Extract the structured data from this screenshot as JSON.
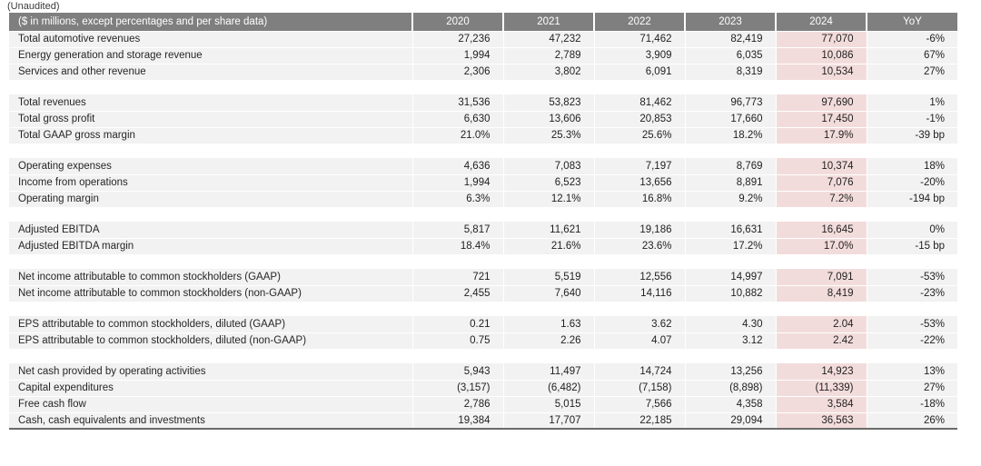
{
  "page": {
    "unaudited_label": "(Unaudited)"
  },
  "colors": {
    "header_bg": "#7f7f7f",
    "header_text": "#ffffff",
    "row_bg": "#f2f2f2",
    "highlight_2024": "#f2dcdb",
    "text": "#1f1f1f",
    "bottom_border": "#6a6a6a"
  },
  "table": {
    "header": {
      "label": "($ in millions, except percentages and per share data)",
      "columns": [
        "2020",
        "2021",
        "2022",
        "2023",
        "2024",
        "YoY"
      ]
    },
    "sections": [
      {
        "rows": [
          {
            "label": "Total automotive revenues",
            "values": [
              "27,236",
              "47,232",
              "71,462",
              "82,419",
              "77,070",
              "-6%"
            ]
          },
          {
            "label": "Energy generation and storage revenue",
            "values": [
              "1,994",
              "2,789",
              "3,909",
              "6,035",
              "10,086",
              "67%"
            ]
          },
          {
            "label": "Services and other revenue",
            "values": [
              "2,306",
              "3,802",
              "6,091",
              "8,319",
              "10,534",
              "27%"
            ]
          }
        ]
      },
      {
        "rows": [
          {
            "label": "Total revenues",
            "values": [
              "31,536",
              "53,823",
              "81,462",
              "96,773",
              "97,690",
              "1%"
            ]
          },
          {
            "label": "Total gross profit",
            "values": [
              "6,630",
              "13,606",
              "20,853",
              "17,660",
              "17,450",
              "-1%"
            ]
          },
          {
            "label": "Total GAAP gross margin",
            "values": [
              "21.0%",
              "25.3%",
              "25.6%",
              "18.2%",
              "17.9%",
              "-39 bp"
            ]
          }
        ]
      },
      {
        "rows": [
          {
            "label": "Operating expenses",
            "values": [
              "4,636",
              "7,083",
              "7,197",
              "8,769",
              "10,374",
              "18%"
            ]
          },
          {
            "label": "Income from operations",
            "values": [
              "1,994",
              "6,523",
              "13,656",
              "8,891",
              "7,076",
              "-20%"
            ]
          },
          {
            "label": "Operating margin",
            "values": [
              "6.3%",
              "12.1%",
              "16.8%",
              "9.2%",
              "7.2%",
              "-194 bp"
            ]
          }
        ]
      },
      {
        "rows": [
          {
            "label": "Adjusted EBITDA",
            "values": [
              "5,817",
              "11,621",
              "19,186",
              "16,631",
              "16,645",
              "0%"
            ]
          },
          {
            "label": "Adjusted EBITDA margin",
            "values": [
              "18.4%",
              "21.6%",
              "23.6%",
              "17.2%",
              "17.0%",
              "-15 bp"
            ]
          }
        ]
      },
      {
        "rows": [
          {
            "label": "Net income attributable to common stockholders (GAAP)",
            "values": [
              "721",
              "5,519",
              "12,556",
              "14,997",
              "7,091",
              "-53%"
            ]
          },
          {
            "label": "Net income attributable to common stockholders (non-GAAP)",
            "values": [
              "2,455",
              "7,640",
              "14,116",
              "10,882",
              "8,419",
              "-23%"
            ]
          }
        ]
      },
      {
        "rows": [
          {
            "label": "EPS attributable to common stockholders, diluted (GAAP)",
            "values": [
              "0.21",
              "1.63",
              "3.62",
              "4.30",
              "2.04",
              "-53%"
            ]
          },
          {
            "label": "EPS attributable to common stockholders, diluted (non-GAAP)",
            "values": [
              "0.75",
              "2.26",
              "4.07",
              "3.12",
              "2.42",
              "-22%"
            ]
          }
        ]
      },
      {
        "rows": [
          {
            "label": "Net cash provided by operating activities",
            "values": [
              "5,943",
              "11,497",
              "14,724",
              "13,256",
              "14,923",
              "13%"
            ]
          },
          {
            "label": "Capital expenditures",
            "values": [
              "(3,157)",
              "(6,482)",
              "(7,158)",
              "(8,898)",
              "(11,339)",
              "27%"
            ]
          },
          {
            "label": "Free cash flow",
            "values": [
              "2,786",
              "5,015",
              "7,566",
              "4,358",
              "3,584",
              "-18%"
            ]
          },
          {
            "label": "Cash, cash equivalents and investments",
            "values": [
              "19,384",
              "17,707",
              "22,185",
              "29,094",
              "36,563",
              "26%"
            ]
          }
        ]
      }
    ]
  }
}
